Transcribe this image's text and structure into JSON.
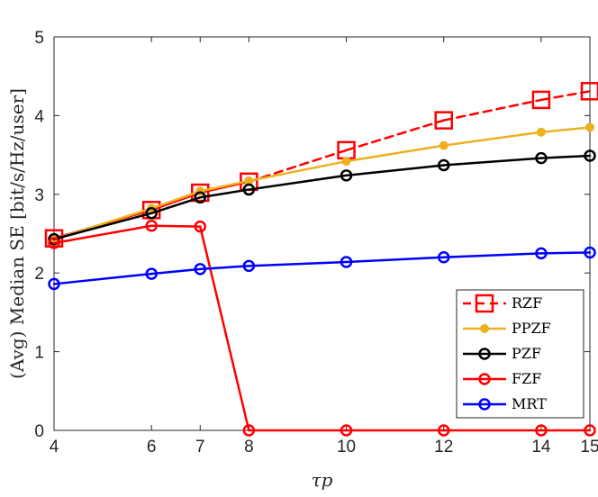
{
  "chart_data": {
    "type": "line",
    "title": "",
    "xlabel": "τp",
    "ylabel": "(Avg) Median SE [bit/s/Hz/user]",
    "xlim": [
      4,
      15
    ],
    "ylim": [
      0,
      5
    ],
    "xticks": [
      4,
      6,
      7,
      8,
      10,
      12,
      14,
      15
    ],
    "yticks": [
      0,
      1,
      2,
      3,
      4,
      5
    ],
    "grid": false,
    "legend_position": "bottom-right",
    "series": [
      {
        "name": "RZF",
        "color": "#ff0000",
        "marker": "square",
        "dashed_from_x": 8,
        "x": [
          4,
          6,
          7,
          8,
          10,
          12,
          14,
          15
        ],
        "y": [
          2.44,
          2.8,
          3.02,
          3.16,
          3.56,
          3.94,
          4.2,
          4.31
        ]
      },
      {
        "name": "PPZF",
        "color": "#edb120",
        "marker": "dot",
        "dashed_from_x": null,
        "x": [
          4,
          6,
          7,
          8,
          10,
          12,
          14,
          15
        ],
        "y": [
          2.43,
          2.82,
          3.04,
          3.17,
          3.42,
          3.62,
          3.79,
          3.85
        ]
      },
      {
        "name": "PZF",
        "color": "#000000",
        "marker": "circle",
        "dashed_from_x": null,
        "x": [
          4,
          6,
          7,
          8,
          10,
          12,
          14,
          15
        ],
        "y": [
          2.43,
          2.76,
          2.96,
          3.06,
          3.24,
          3.37,
          3.46,
          3.49
        ]
      },
      {
        "name": "FZF",
        "color": "#ff0000",
        "marker": "circle",
        "dashed_from_x": null,
        "x": [
          4,
          6,
          7,
          8,
          10,
          12,
          14,
          15
        ],
        "y": [
          2.38,
          2.6,
          2.59,
          0,
          0,
          0,
          0,
          0
        ]
      },
      {
        "name": "MRT",
        "color": "#0000ff",
        "marker": "circle",
        "dashed_from_x": null,
        "x": [
          4,
          6,
          7,
          8,
          10,
          12,
          14,
          15
        ],
        "y": [
          1.86,
          1.99,
          2.05,
          2.09,
          2.14,
          2.2,
          2.25,
          2.26
        ]
      }
    ]
  }
}
